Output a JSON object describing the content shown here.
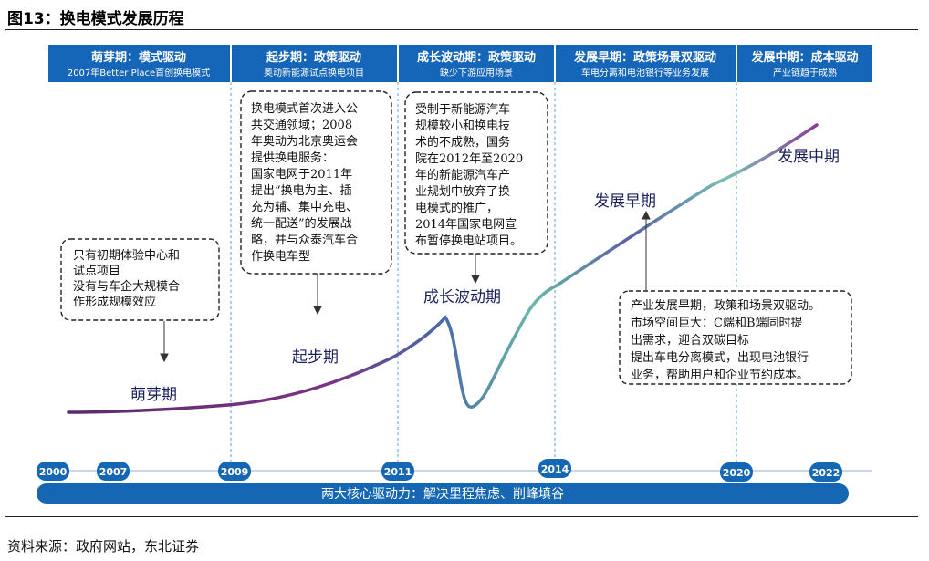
{
  "figure": {
    "title": "图13：换电模式发展历程",
    "source": "资料来源：政府网站，东北证券"
  },
  "phases": [
    {
      "title": "萌芽期：模式驱动",
      "subtitle": "2007年Better Place首创换电模式"
    },
    {
      "title": "起步期：政策驱动",
      "subtitle": "奥动新能源试点换电项目"
    },
    {
      "title": "成长波动期：政策驱动",
      "subtitle": "缺少下游应用场景"
    },
    {
      "title": "发展早期：政策场景双驱动",
      "subtitle": "车电分离和电池银行等业务发展"
    },
    {
      "title": "发展中期：成本驱动",
      "subtitle": "产业链趋于成熟"
    }
  ],
  "stage_labels": {
    "sprout": "萌芽期",
    "start": "起步期",
    "volatile": "成长波动期",
    "early": "发展早期",
    "mid": "发展中期"
  },
  "boxes": {
    "sprout": [
      "只有初期体验中心和",
      "试点项目",
      "没有与车企大规模合",
      "作形成规模效应"
    ],
    "start": [
      "换电模式首次进入公",
      "共交通领域；2008",
      "年奥动为北京奥运会",
      "提供换电服务：",
      "国家电网于2011年",
      "提出“换电为主、插",
      "充为辅、集中充电、",
      "统一配送”的发展战",
      "略，并与众泰汽车合",
      "作换电车型"
    ],
    "volatile": [
      "受制于新能源汽车",
      "规模较小和换电技",
      "术的不成熟，国务",
      "院在2012年至2020",
      "年的新能源汽车产",
      "业规划中放弃了换",
      "电模式的推广，",
      "2014年国家电网宣",
      "布暂停换电站项目。"
    ],
    "early": [
      "产业发展早期，政策和场景双驱动。",
      "市场空间巨大：C端和B端同时提",
      "出需求，迎合双碳目标",
      "提出车电分离模式，出现电池银行",
      "业务，帮助用户和企业节约成本。"
    ]
  },
  "years": [
    "2000",
    "2007",
    "2009",
    "2011",
    "2014",
    "2020",
    "2022"
  ],
  "core_bar": "两大核心驱动力：解决里程焦虑、削峰填谷",
  "colors": {
    "header_blue": "#1565b8",
    "bar_blue": "#1567b3",
    "divider": "#5a9fd6",
    "curve_purple": "#6a2c7a",
    "curve_teal": "#5fb7a6"
  }
}
